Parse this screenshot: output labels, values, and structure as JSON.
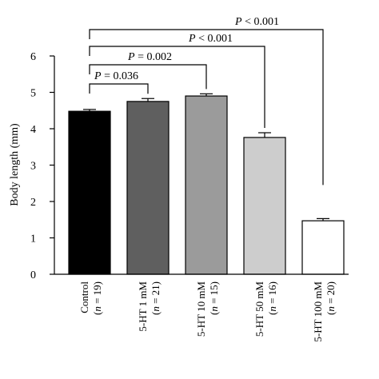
{
  "chart_data": {
    "type": "bar",
    "title": "",
    "xlabel": "",
    "ylabel": "Body length (mm)",
    "ylim": [
      0,
      6
    ],
    "yticks": [
      0,
      1,
      2,
      3,
      4,
      5,
      6
    ],
    "grid": false,
    "categories": [
      {
        "line1": "Control",
        "line2_var": "n",
        "line2_rest": " = 19)"
      },
      {
        "line1": "5-HT 1 mM",
        "line2_var": "n",
        "line2_rest": " = 21)"
      },
      {
        "line1": "5-HT 10 mM",
        "line2_var": "n",
        "line2_rest": " = 15)"
      },
      {
        "line1": "5-HT 50 mM",
        "line2_var": "n",
        "line2_rest": " = 16)"
      },
      {
        "line1": "5-HT 100 mM",
        "line2_var": "n",
        "line2_rest": " = 20)"
      }
    ],
    "values": [
      4.48,
      4.75,
      4.9,
      3.76,
      1.47
    ],
    "errors": [
      0.05,
      0.08,
      0.06,
      0.13,
      0.06
    ],
    "bar_colors": [
      "#000000",
      "#5f5f5f",
      "#9b9b9b",
      "#cdcdcd",
      "#ffffff"
    ],
    "comparisons": [
      {
        "from": 0,
        "to": 1,
        "p_var": "P",
        "p_rest": " = 0.036"
      },
      {
        "from": 0,
        "to": 2,
        "p_var": "P",
        "p_rest": " = 0.002"
      },
      {
        "from": 0,
        "to": 3,
        "p_var": "P",
        "p_rest": " < 0.001"
      },
      {
        "from": 0,
        "to": 4,
        "p_var": "P",
        "p_rest": " < 0.001"
      }
    ]
  }
}
